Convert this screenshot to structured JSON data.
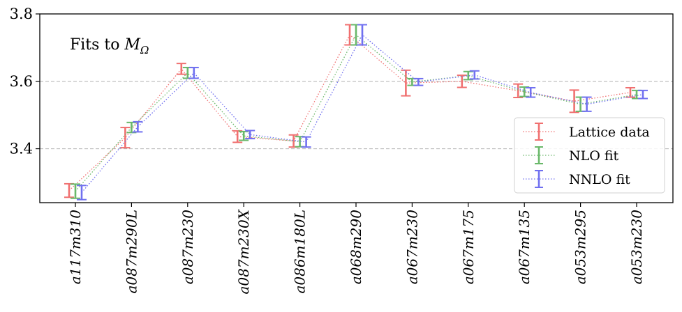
{
  "chart_data": {
    "type": "errorbar",
    "title": "",
    "annotation": {
      "prefix": "Fits to ",
      "symbol": "M",
      "subscript": "Ω"
    },
    "xlabel": "",
    "ylabel": "",
    "ylim": [
      3.24,
      3.8
    ],
    "yticks": [
      3.4,
      3.6,
      3.8
    ],
    "ytick_labels": [
      "3.4",
      "3.6",
      "3.8"
    ],
    "grid_y": [
      3.4,
      3.6
    ],
    "legend_location": "right",
    "categories": [
      "a117m310",
      "a087m290L",
      "a087m230",
      "a087m230X",
      "a086m180L",
      "a068m290",
      "a067m230",
      "a067m175",
      "a067m135",
      "a053m295",
      "a053m230"
    ],
    "series": [
      {
        "name": "Lattice data",
        "color": "#f07070",
        "values": [
          3.276,
          3.433,
          3.637,
          3.436,
          3.423,
          3.738,
          3.595,
          3.6,
          3.572,
          3.541,
          3.567
        ],
        "errors": [
          0.02,
          0.03,
          0.016,
          0.017,
          0.018,
          0.03,
          0.038,
          0.018,
          0.02,
          0.033,
          0.014
        ]
      },
      {
        "name": "NLO fit",
        "color": "#6ab86a",
        "values": [
          3.274,
          3.463,
          3.625,
          3.438,
          3.421,
          3.738,
          3.598,
          3.617,
          3.569,
          3.532,
          3.561
        ],
        "errors": [
          0.021,
          0.015,
          0.016,
          0.013,
          0.015,
          0.03,
          0.01,
          0.012,
          0.014,
          0.021,
          0.012
        ]
      },
      {
        "name": "NNLO fit",
        "color": "#7070f0",
        "values": [
          3.27,
          3.465,
          3.625,
          3.442,
          3.42,
          3.738,
          3.598,
          3.619,
          3.567,
          3.532,
          3.561
        ],
        "errors": [
          0.021,
          0.015,
          0.016,
          0.012,
          0.015,
          0.03,
          0.01,
          0.012,
          0.014,
          0.021,
          0.012
        ]
      }
    ]
  }
}
